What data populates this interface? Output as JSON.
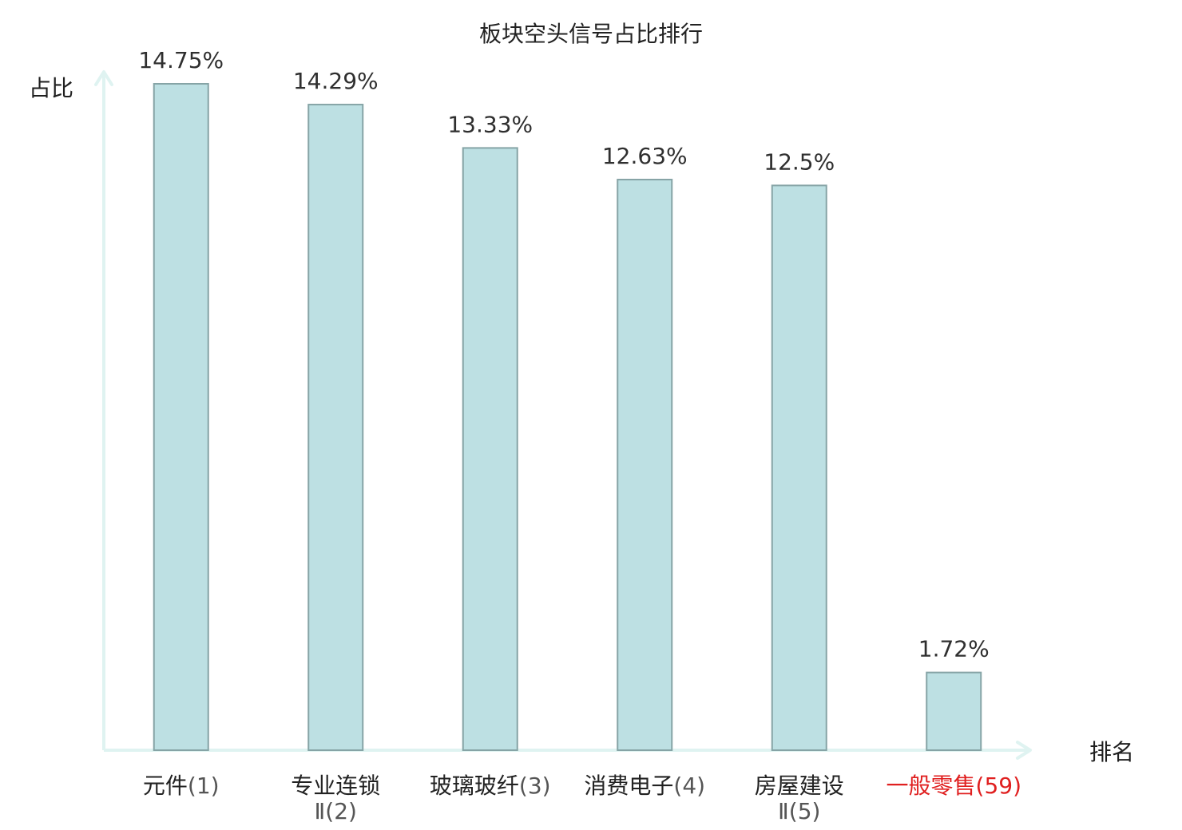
{
  "chart_data": {
    "type": "bar",
    "title": "板块空头信号占比排行",
    "ylabel": "占比",
    "xlabel": "排名",
    "categories": [
      {
        "name": "元件",
        "name_line2": "",
        "rank": "(1)",
        "highlight": false
      },
      {
        "name": "专业连锁",
        "name_line2": "Ⅱ",
        "rank": "(2)",
        "highlight": false
      },
      {
        "name": "玻璃玻纤",
        "name_line2": "",
        "rank": "(3)",
        "highlight": false
      },
      {
        "name": "消费电子",
        "name_line2": "",
        "rank": "(4)",
        "highlight": false
      },
      {
        "name": "房屋建设",
        "name_line2": "Ⅱ",
        "rank": "(5)",
        "highlight": false
      },
      {
        "name": "一般零售",
        "name_line2": "",
        "rank": "(59)",
        "highlight": true
      }
    ],
    "values": [
      14.75,
      14.29,
      13.33,
      12.63,
      12.5,
      1.72
    ],
    "value_labels": [
      "14.75%",
      "14.29%",
      "13.33%",
      "12.63%",
      "12.5%",
      "1.72%"
    ],
    "ylim": [
      0,
      14.75
    ],
    "grid": false,
    "colors": {
      "bar_fill": "#bde0e3",
      "bar_stroke": "#86a4a6",
      "axis": "#dff3f1",
      "highlight_text": "#e02020",
      "text": "#222222"
    }
  }
}
